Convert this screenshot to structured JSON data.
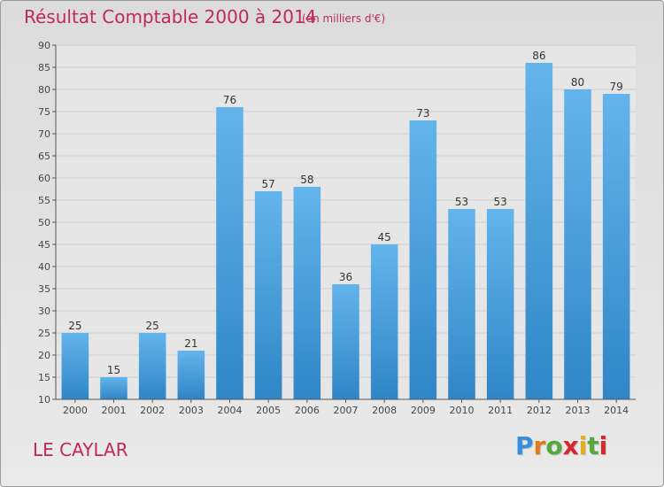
{
  "header": {
    "title": "Résultat Comptable 2000 à 2014",
    "subtitle": "(en milliers d'€)"
  },
  "footer": {
    "commune": "LE CAYLAR",
    "logo_letters": [
      "P",
      "r",
      "o",
      "x",
      "i",
      "t",
      "i"
    ],
    "logo_colors": [
      "#3a8fd8",
      "#e07b1a",
      "#57a83c",
      "#d8282e",
      "#e0b01a",
      "#57a83c",
      "#d8282e"
    ]
  },
  "chart_data": {
    "type": "bar",
    "title": "Résultat Comptable 2000 à 2014",
    "subtitle": "(en milliers d'€)",
    "categories": [
      "2000",
      "2001",
      "2002",
      "2003",
      "2004",
      "2005",
      "2006",
      "2007",
      "2008",
      "2009",
      "2010",
      "2011",
      "2012",
      "2013",
      "2014"
    ],
    "values": [
      25,
      15,
      25,
      21,
      76,
      57,
      58,
      36,
      45,
      73,
      53,
      53,
      86,
      80,
      79
    ],
    "ylim": [
      10,
      90
    ],
    "yticks": [
      10,
      15,
      20,
      25,
      30,
      35,
      40,
      45,
      50,
      55,
      60,
      65,
      70,
      75,
      80,
      85,
      90
    ],
    "grid": true,
    "legend": "none",
    "bar_color_light": "#64b4ec",
    "bar_color_dark": "#2f86c6"
  }
}
